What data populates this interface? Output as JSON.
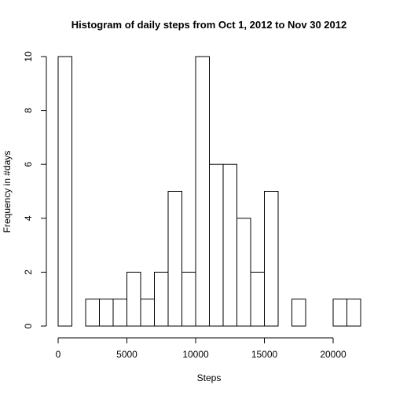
{
  "chart_data": {
    "type": "bar",
    "title": "Histogram of daily steps from Oct 1, 2012 to Nov 30 2012",
    "xlabel": "Steps",
    "ylabel": "Frequency in #days",
    "bin_width": 1000,
    "bin_starts": [
      0,
      1000,
      2000,
      3000,
      4000,
      5000,
      6000,
      7000,
      8000,
      9000,
      10000,
      11000,
      12000,
      13000,
      14000,
      15000,
      16000,
      17000,
      18000,
      19000,
      20000,
      21000
    ],
    "values": [
      10,
      0,
      1,
      1,
      1,
      2,
      1,
      2,
      5,
      2,
      10,
      6,
      6,
      4,
      2,
      5,
      0,
      1,
      0,
      0,
      1,
      1
    ],
    "xlim": [
      0,
      22000
    ],
    "ylim": [
      0,
      10
    ],
    "x_ticks": [
      0,
      5000,
      10000,
      15000,
      20000
    ],
    "y_ticks": [
      0,
      2,
      4,
      6,
      8,
      10
    ],
    "x_tick_labels": [
      "0",
      "5000",
      "10000",
      "15000",
      "20000"
    ],
    "y_tick_labels": [
      "0",
      "2",
      "4",
      "6",
      "8",
      "10"
    ],
    "grid": false,
    "colors": {
      "bar_fill": "#ffffff",
      "bar_stroke": "#000000"
    }
  }
}
